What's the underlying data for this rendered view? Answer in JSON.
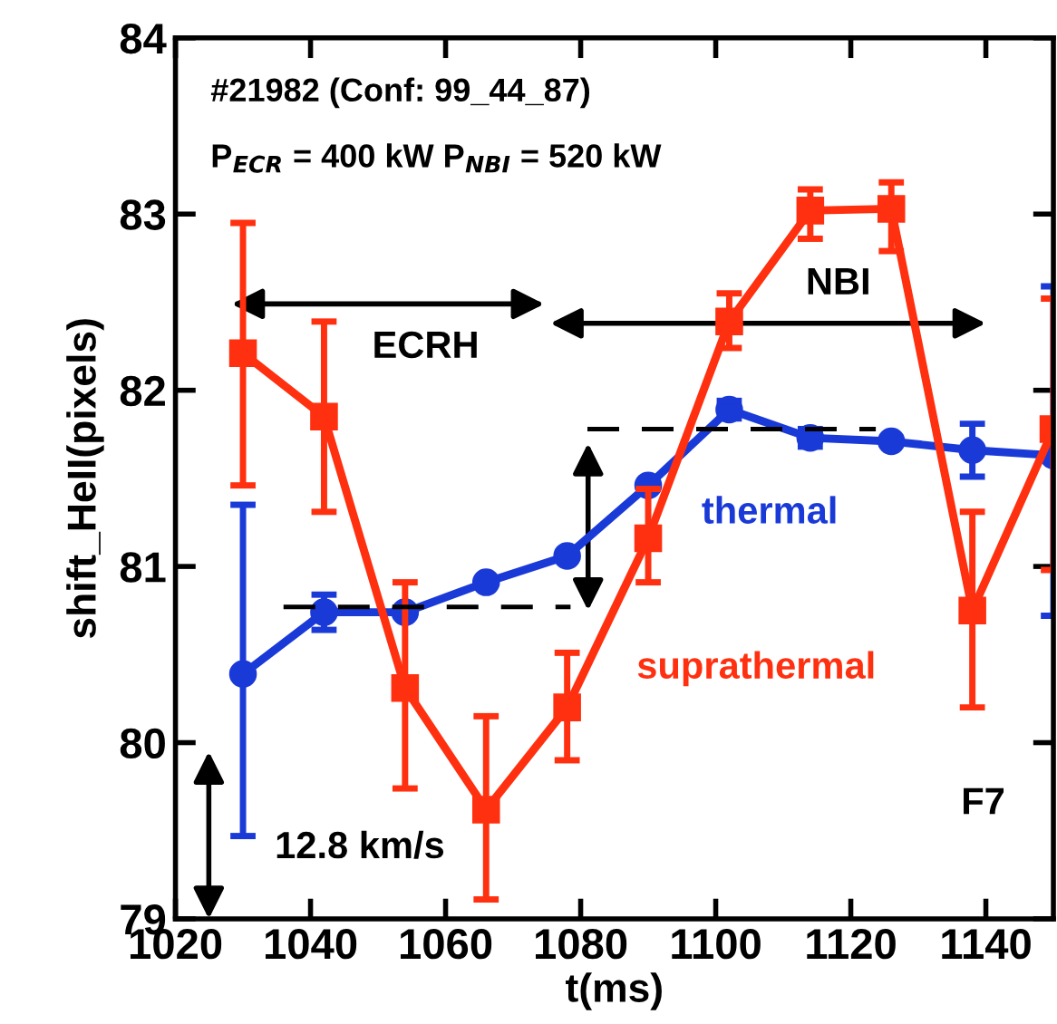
{
  "chart_data": {
    "type": "line",
    "xlabel": "t(ms)",
    "ylabel": "shift_HeII(pixels)",
    "xlim": [
      1020,
      1150
    ],
    "ylim": [
      79,
      84
    ],
    "xticks": [
      1020,
      1040,
      1060,
      1080,
      1100,
      1120,
      1140
    ],
    "yticks": [
      79,
      80,
      81,
      82,
      83,
      84
    ],
    "grid": false,
    "legend": false,
    "line_style": "solid",
    "series": [
      {
        "name": "thermal",
        "color": "#1a3ad8",
        "marker": "circle",
        "x": [
          1030,
          1042,
          1054,
          1066,
          1078,
          1090,
          1102,
          1114,
          1126,
          1138,
          1150
        ],
        "values": [
          80.39,
          80.74,
          80.74,
          80.91,
          81.06,
          81.46,
          81.89,
          81.73,
          81.71,
          81.66,
          81.63
        ],
        "errors": [
          [
            79.47,
            81.35
          ],
          0.1,
          null,
          null,
          null,
          null,
          0.05,
          0.05,
          null,
          0.15,
          [
            80.72,
            82.59
          ]
        ]
      },
      {
        "name": "suprathermal",
        "color": "#ff3010",
        "marker": "square",
        "x": [
          1030,
          1042,
          1054,
          1066,
          1078,
          1090,
          1102,
          1114,
          1126,
          1138,
          1150
        ],
        "values": [
          82.21,
          81.85,
          80.31,
          79.62,
          80.2,
          81.16,
          82.39,
          83.02,
          83.03,
          80.75,
          81.78
        ],
        "errors": [
          [
            81.46,
            82.95
          ],
          [
            81.31,
            82.39
          ],
          [
            79.74,
            80.91
          ],
          [
            79.11,
            80.15
          ],
          [
            79.9,
            80.51
          ],
          [
            80.91,
            81.44
          ],
          [
            82.24,
            82.55
          ],
          [
            82.86,
            83.14
          ],
          [
            82.79,
            83.18
          ],
          [
            80.2,
            81.31
          ],
          [
            80.98,
            82.52
          ]
        ]
      },
      {
        "color": "#000000",
        "marker": "none",
        "line_style": "dashed",
        "x": [
          1036,
          1078.5
        ],
        "values": [
          80.77,
          80.77
        ]
      },
      {
        "color": "#000000",
        "marker": "none",
        "line_style": "dashed",
        "x": [
          1081,
          1123.7
        ],
        "values": [
          81.78,
          81.78
        ]
      }
    ],
    "annotations": [
      "#21982 (Conf: 99_44_87)",
      "P$_{ECR}$ = 400 kW P$_{NBI}$ = 520 kW",
      "ECRH",
      "NBI",
      "12.8 km/s",
      "F7"
    ]
  }
}
